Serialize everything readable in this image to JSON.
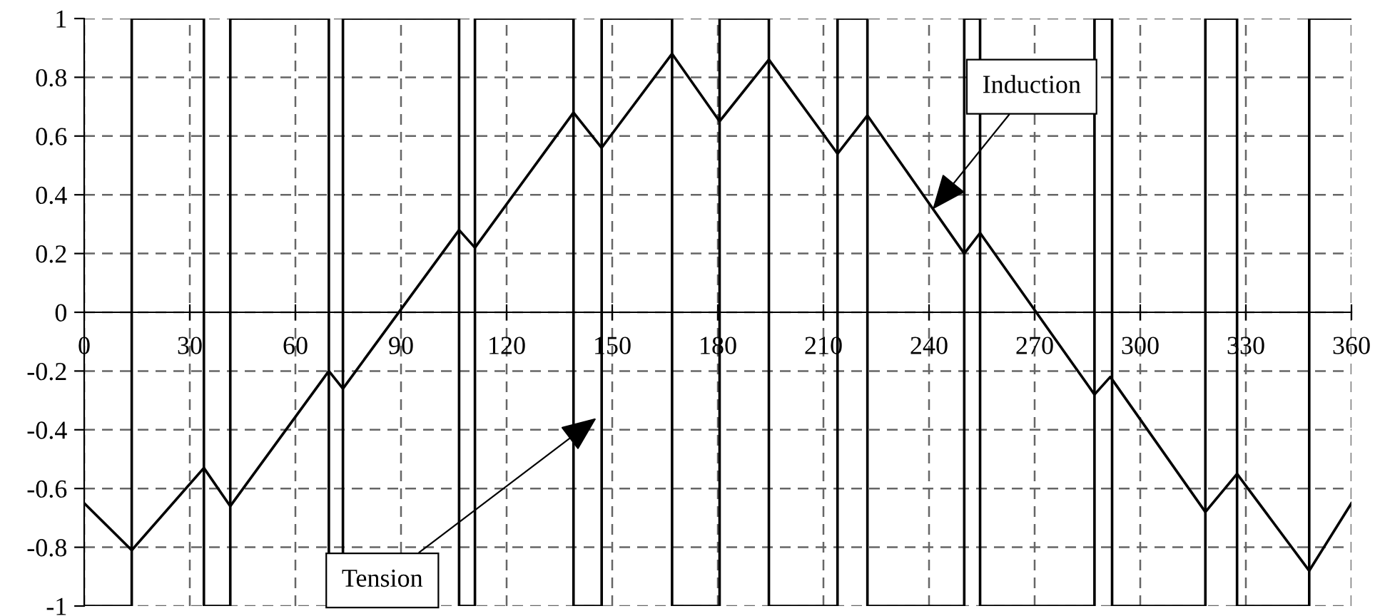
{
  "chart_data": {
    "type": "line",
    "series": [
      {
        "type": "step",
        "color": "#000000",
        "x": [
          0,
          13.5,
          34,
          41.5,
          69.5,
          73.5,
          106.5,
          111,
          139,
          147,
          167,
          180.5,
          194.5,
          214,
          222.5,
          250,
          254.5,
          287,
          292,
          318.5,
          327.5,
          348,
          360
        ],
        "values": [
          -1,
          1,
          -1,
          1,
          -1,
          1,
          -1,
          1,
          -1,
          1,
          -1,
          1,
          -1,
          1,
          -1,
          1,
          -1,
          1,
          -1,
          1,
          -1,
          1,
          1
        ]
      },
      {
        "color": "#000000",
        "x": [
          0,
          13.5,
          34,
          41.5,
          69.5,
          73.5,
          106.5,
          111,
          139,
          147,
          167,
          180.5,
          194.5,
          214,
          222.5,
          250,
          254.5,
          287,
          291.5,
          318.5,
          327.5,
          348,
          360
        ],
        "values": [
          -0.65,
          -0.81,
          -0.53,
          -0.66,
          -0.2,
          -0.26,
          0.28,
          0.22,
          0.68,
          0.56,
          0.88,
          0.65,
          0.86,
          0.54,
          0.67,
          0.2,
          0.27,
          -0.28,
          -0.22,
          -0.68,
          -0.55,
          -0.88,
          -0.65
        ]
      }
    ],
    "annotations": [
      {
        "text": "Induction",
        "x": 241,
        "y": 0.35
      },
      {
        "text": "Tension",
        "x": 145.5,
        "y": -0.36
      }
    ],
    "xlim": [
      0,
      360
    ],
    "xticks": [
      0,
      30,
      60,
      90,
      120,
      150,
      180,
      210,
      240,
      270,
      300,
      330,
      360
    ],
    "ylim": [
      -1,
      1
    ],
    "yticks": [
      -1,
      -0.8,
      -0.6,
      -0.4,
      -0.2,
      0,
      0.2,
      0.4,
      0.6,
      0.8,
      1
    ],
    "grid": true,
    "legend": false,
    "marker": "none",
    "line_style": "solid"
  }
}
